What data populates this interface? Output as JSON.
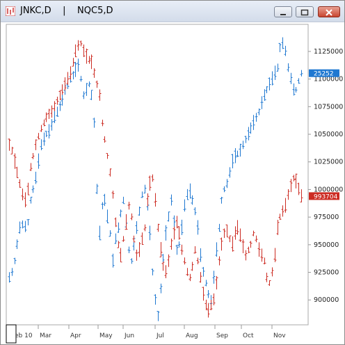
{
  "window": {
    "title": "JNKC,D    |    NQC5,D",
    "icon": "chart-icon",
    "buttons": [
      "minimize",
      "maximize",
      "close"
    ]
  },
  "chart_data": {
    "type": "bar",
    "style": "ohlc",
    "x_labels": [
      "eb 10",
      "Mar",
      "Apr",
      "May",
      "Jun",
      "Jul",
      "Aug",
      "Sep",
      "Oct",
      "Nov"
    ],
    "y_ticks": [
      "1125000",
      "1100000",
      "1075000",
      "1050000",
      "1025000",
      "1000000",
      "975000",
      "950000",
      "925000",
      "900000"
    ],
    "ylim": [
      880000,
      1147000
    ],
    "series": [
      {
        "name": "NQC5",
        "color": "#1f78d1",
        "last_value_label": "25252",
        "last_value": 1105000,
        "values": [
          920000,
          925000,
          935000,
          950000,
          965000,
          968000,
          966000,
          970000,
          990000,
          1000000,
          1010000,
          1025000,
          1040000,
          1045000,
          1050000,
          1052000,
          1058000,
          1065000,
          1070000,
          1075000,
          1082000,
          1090000,
          1095000,
          1100000,
          1103000,
          1108000,
          1112000,
          1100000,
          1085000,
          1090000,
          1095000,
          1085000,
          1060000,
          1000000,
          960000,
          985000,
          990000,
          975000,
          960000,
          935000,
          955000,
          965000,
          978000,
          990000,
          970000,
          945000,
          935000,
          950000,
          965000,
          980000,
          995000,
          1000000,
          985000,
          960000,
          925000,
          900000,
          885000,
          910000,
          935000,
          960000,
          975000,
          990000,
          970000,
          945000,
          950000,
          965000,
          985000,
          995000,
          998000,
          990000,
          980000,
          965000,
          940000,
          925000,
          915000,
          905000,
          900000,
          920000,
          945000,
          965000,
          990000,
          1000000,
          1005000,
          1015000,
          1025000,
          1030000,
          1032000,
          1035000,
          1040000,
          1045000,
          1050000,
          1055000,
          1060000,
          1065000,
          1070000,
          1078000,
          1085000,
          1090000,
          1095000,
          1100000,
          1105000,
          1110000,
          1128000,
          1132000,
          1125000,
          1110000,
          1100000,
          1090000,
          1090000,
          1098000,
          1105000
        ],
        "index_offset": 0
      },
      {
        "name": "JNKC",
        "color": "#cc2b22",
        "last_value_label": "993704",
        "last_value": 993704,
        "values": [
          1040000,
          1035000,
          1025000,
          1015000,
          1005000,
          995000,
          990000,
          1000000,
          1020000,
          1030000,
          1040000,
          1048000,
          1055000,
          1060000,
          1065000,
          1068000,
          1070000,
          1075000,
          1080000,
          1085000,
          1090000,
          1095000,
          1100000,
          1105000,
          1115000,
          1125000,
          1130000,
          1132000,
          1125000,
          1120000,
          1117000,
          1115000,
          1105000,
          1095000,
          1085000,
          1060000,
          1045000,
          1030000,
          1015000,
          995000,
          970000,
          950000,
          940000,
          955000,
          970000,
          985000,
          975000,
          955000,
          940000,
          945000,
          955000,
          965000,
          990000,
          1005000,
          1010000,
          990000,
          965000,
          945000,
          930000,
          925000,
          935000,
          950000,
          960000,
          970000,
          960000,
          945000,
          935000,
          925000,
          920000,
          930000,
          945000,
          935000,
          920000,
          905000,
          895000,
          890000,
          895000,
          900000,
          915000,
          935000,
          950000,
          960000,
          962000,
          955000,
          950000,
          960000,
          965000,
          958000,
          948000,
          940000,
          945000,
          950000,
          960000,
          955000,
          945000,
          940000,
          935000,
          920000,
          915000,
          925000,
          940000,
          965000,
          975000,
          980000,
          985000,
          995000,
          1003000,
          1010000,
          1007000,
          1000000,
          993704
        ],
        "index_offset": 0
      }
    ],
    "grid": false,
    "legend": "none"
  }
}
